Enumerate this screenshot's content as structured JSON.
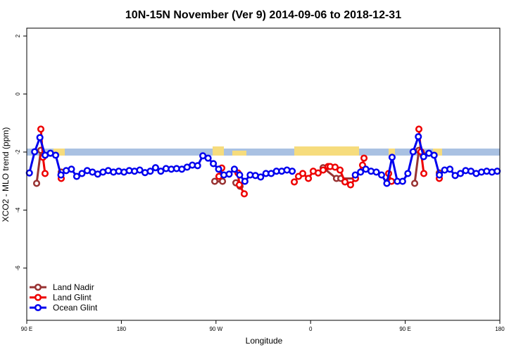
{
  "chart_data": {
    "type": "line",
    "title": "10N-15N November (Ver 9)   2014-09-06 to 2018-12-31",
    "x_label": "Longitude",
    "y_label": "XCO2 - MLO trend (ppm)",
    "xlim": [
      90,
      540
    ],
    "ylim": [
      -7.8,
      2.27
    ],
    "xticks": [
      {
        "value": 90,
        "label": "90 E"
      },
      180,
      {
        "value": 270,
        "label": "90 W"
      },
      {
        "value": 360,
        "label": "0"
      },
      {
        "value": 450,
        "label": "90 E"
      },
      180
    ],
    "yticks": [
      2,
      0,
      -2,
      -4,
      -6
    ],
    "legend": "bottom-left",
    "series": [
      {
        "name": "Land Nadir",
        "color": "#983232",
        "x": [
          99.4,
          103.4,
          110,
          122.8,
          200,
          268.8,
          276.2,
          282,
          288.9,
          292.9,
          330,
          371.9,
          384.6,
          388.7,
          402.7,
          420,
          434.2,
          450,
          459,
          463,
          467,
          475,
          482.4
        ],
        "values": [
          -3.08,
          -1.94,
          null,
          -2.69,
          null,
          -3.01,
          -3.01,
          null,
          -3.06,
          -3.18,
          null,
          -2.54,
          -2.91,
          -2.91,
          -2.91,
          null,
          -3.01,
          null,
          -3.08,
          -1.94,
          -2.11,
          null,
          -2.72
        ]
      },
      {
        "name": "Land Glint",
        "color": "#ee0000",
        "x": [
          103.4,
          105.4,
          107.4,
          115,
          122.8,
          200,
          272.8,
          275.5,
          283,
          290.9,
          292.2,
          296.9,
          320,
          344.5,
          348.5,
          352.5,
          357.9,
          362.5,
          367.2,
          371.9,
          376.6,
          378.6,
          383.3,
          388,
          392.7,
          398,
          402.7,
          409.4,
          410.8,
          420,
          434.2,
          436.9,
          450,
          463,
          465,
          467.7,
          475,
          482.4
        ],
        "values": [
          -1.21,
          -2.18,
          -2.74,
          null,
          -2.91,
          null,
          -2.84,
          -2.55,
          null,
          -2.72,
          -3.13,
          -3.44,
          null,
          -3.03,
          -2.84,
          -2.74,
          -2.91,
          -2.66,
          -2.72,
          -2.62,
          -2.5,
          -2.5,
          -2.52,
          -2.62,
          -3.03,
          -3.13,
          -2.91,
          -2.45,
          -2.21,
          null,
          -2.74,
          -3.01,
          null,
          -1.21,
          -1.99,
          -2.74,
          null,
          -2.91
        ]
      },
      {
        "name": "Ocean Glint",
        "color": "#0000ee",
        "x": [
          92.5,
          97.5,
          102.5,
          107.5,
          112.5,
          117.5,
          122.5,
          127.5,
          132.5,
          137.5,
          142.5,
          147.5,
          152.5,
          157.5,
          162.5,
          167.5,
          172.5,
          177.5,
          182.5,
          187.5,
          192.5,
          197.5,
          202.5,
          207.5,
          212.5,
          217.5,
          222.5,
          227.5,
          232.5,
          237.5,
          242.5,
          247.5,
          252.5,
          257.5,
          262.5,
          267.5,
          272.5,
          277.5,
          282.5,
          287.5,
          292.5,
          297.5,
          302.5,
          307.5,
          312.5,
          317.5,
          322.5,
          327.5,
          332.5,
          337.5,
          342.5,
          370,
          402.5,
          407.5,
          412.5,
          417.5,
          422.5,
          427.5,
          432.5,
          437.5,
          442.5,
          447.5,
          452.5,
          457.5,
          462.5,
          467.5,
          472.5,
          477.5,
          482.5,
          487.5,
          492.5,
          497.5,
          502.5,
          507.5,
          512.5,
          517.5,
          522.5,
          527.5,
          532.5,
          537.5
        ],
        "values": [
          -2.72,
          -1.99,
          -1.5,
          -2.11,
          -2.04,
          -2.11,
          -2.79,
          -2.64,
          -2.59,
          -2.84,
          -2.74,
          -2.64,
          -2.69,
          -2.76,
          -2.69,
          -2.64,
          -2.69,
          -2.66,
          -2.69,
          -2.64,
          -2.66,
          -2.62,
          -2.71,
          -2.66,
          -2.54,
          -2.66,
          -2.57,
          -2.59,
          -2.57,
          -2.59,
          -2.52,
          -2.45,
          -2.47,
          -2.13,
          -2.21,
          -2.4,
          -2.59,
          -2.79,
          -2.76,
          -2.59,
          -2.79,
          -3.01,
          -2.79,
          -2.81,
          -2.86,
          -2.74,
          -2.74,
          -2.66,
          -2.66,
          -2.62,
          -2.66,
          null,
          -2.79,
          -2.69,
          -2.59,
          -2.66,
          -2.69,
          -2.79,
          -3.08,
          -2.18,
          -3.01,
          -3.01,
          -2.74,
          -1.99,
          -1.47,
          -2.16,
          -2.04,
          -2.11,
          -2.79,
          -2.62,
          -2.59,
          -2.81,
          -2.74,
          -2.64,
          -2.66,
          -2.74,
          -2.69,
          -2.66,
          -2.69,
          -2.66
        ]
      }
    ]
  }
}
